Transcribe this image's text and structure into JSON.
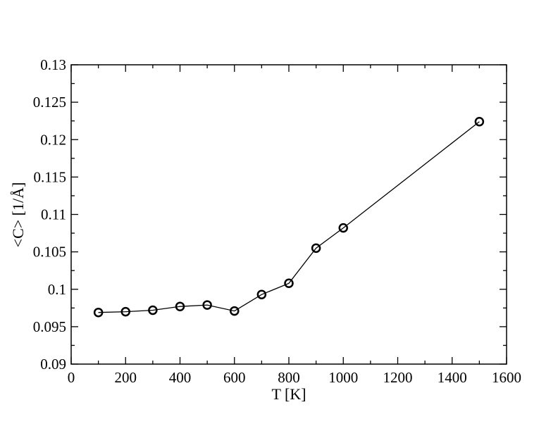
{
  "chart_data": {
    "type": "line",
    "title": "",
    "xlabel": "T [K]",
    "ylabel": "<C> [1/Å]",
    "xlim": [
      0,
      1600
    ],
    "ylim": [
      0.09,
      0.13
    ],
    "x_ticks": [
      "0",
      "200",
      "400",
      "600",
      "800",
      "1000",
      "1200",
      "1400",
      "1600"
    ],
    "y_ticks": [
      "0.09",
      "0.095",
      "0.1",
      "0.105",
      "0.11",
      "0.115",
      "0.12",
      "0.125",
      "0.13"
    ],
    "x_tick_values": [
      0,
      200,
      400,
      600,
      800,
      1000,
      1200,
      1400,
      1600
    ],
    "y_tick_values": [
      0.09,
      0.095,
      0.1,
      0.105,
      0.11,
      0.115,
      0.12,
      0.125,
      0.13
    ],
    "grid": false,
    "legend": "none",
    "line_color": "#000000",
    "marker": "open-circle",
    "series": [
      {
        "x": [
          100,
          200,
          300,
          400,
          500,
          600,
          700,
          800,
          900,
          1000,
          1500
        ],
        "y": [
          0.0969,
          0.097,
          0.0972,
          0.0977,
          0.0979,
          0.0971,
          0.0993,
          0.1008,
          0.1055,
          0.1082,
          0.1224
        ]
      }
    ]
  }
}
